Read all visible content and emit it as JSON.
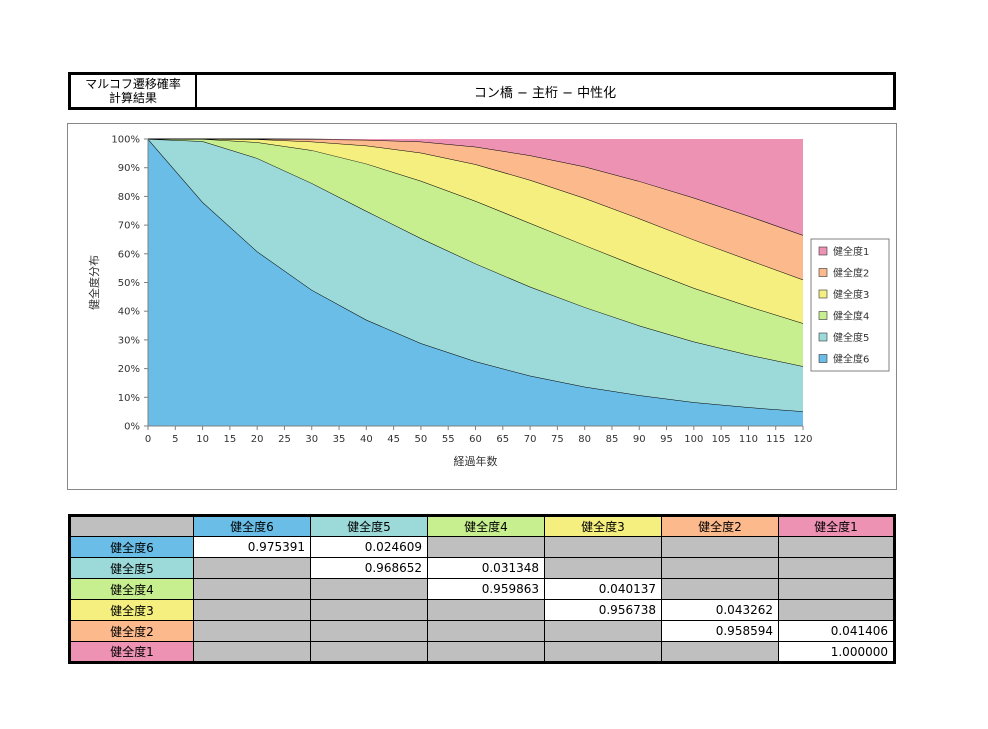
{
  "header": {
    "label_line1": "マルコフ遷移確率",
    "label_line2": "計算結果",
    "title": "コン橋 − 主桁 − 中性化"
  },
  "chart_data": {
    "type": "area",
    "stacked": true,
    "xlabel": "経過年数",
    "ylabel": "健全度分布",
    "xlim": [
      0,
      120
    ],
    "ylim": [
      0,
      100
    ],
    "x_ticks": [
      0,
      5,
      10,
      15,
      20,
      25,
      30,
      35,
      40,
      45,
      50,
      55,
      60,
      65,
      70,
      75,
      80,
      85,
      90,
      95,
      100,
      105,
      110,
      115,
      120
    ],
    "y_ticks": [
      "0%",
      "10%",
      "20%",
      "30%",
      "40%",
      "50%",
      "60%",
      "70%",
      "80%",
      "90%",
      "100%"
    ],
    "grid": false,
    "legend_position": "right",
    "x": [
      0,
      10,
      20,
      30,
      40,
      50,
      60,
      70,
      80,
      90,
      100,
      110,
      120
    ],
    "series": [
      {
        "name": "健全度6",
        "color": "#69bde6",
        "values": [
          100,
          78.0,
          60.8,
          47.4,
          37.0,
          28.8,
          22.5,
          17.5,
          13.7,
          10.7,
          8.3,
          6.5,
          5.1
        ]
      },
      {
        "name": "健全度5",
        "color": "#9cdada",
        "values": [
          0,
          21.2,
          32.5,
          37.2,
          37.9,
          36.6,
          34.1,
          31.0,
          27.7,
          24.3,
          21.1,
          18.3,
          15.7
        ]
      },
      {
        "name": "健全度4",
        "color": "#c7ee8f",
        "values": [
          0,
          0.8,
          5.6,
          11.5,
          16.5,
          20.0,
          21.8,
          22.2,
          21.6,
          20.4,
          18.7,
          16.9,
          15.0
        ]
      },
      {
        "name": "健全度3",
        "color": "#f4ef7f",
        "values": [
          0,
          0,
          1.0,
          3.0,
          6.3,
          9.8,
          12.8,
          15.0,
          16.4,
          16.9,
          16.8,
          16.2,
          15.2
        ]
      },
      {
        "name": "健全度2",
        "color": "#fbb98c",
        "values": [
          0,
          0,
          0.1,
          0.8,
          2.0,
          3.9,
          6.1,
          8.6,
          11.0,
          13.0,
          14.6,
          15.3,
          15.5
        ]
      },
      {
        "name": "健全度1",
        "color": "#ee92b4",
        "values": [
          0,
          0,
          0,
          0.1,
          0.3,
          0.9,
          2.7,
          5.7,
          9.6,
          14.7,
          20.5,
          26.8,
          33.5
        ]
      }
    ]
  },
  "matrix": {
    "columns": [
      {
        "label": "健全度6",
        "color": "#69bde6"
      },
      {
        "label": "健全度5",
        "color": "#9cdada"
      },
      {
        "label": "健全度4",
        "color": "#c7ee8f"
      },
      {
        "label": "健全度3",
        "color": "#f4ef7f"
      },
      {
        "label": "健全度2",
        "color": "#fbb98c"
      },
      {
        "label": "健全度1",
        "color": "#ee92b4"
      }
    ],
    "rows": [
      {
        "label": "健全度6",
        "color": "#69bde6",
        "cells": [
          "0.975391",
          "0.024609",
          null,
          null,
          null,
          null
        ]
      },
      {
        "label": "健全度5",
        "color": "#9cdada",
        "cells": [
          null,
          "0.968652",
          "0.031348",
          null,
          null,
          null
        ]
      },
      {
        "label": "健全度4",
        "color": "#c7ee8f",
        "cells": [
          null,
          null,
          "0.959863",
          "0.040137",
          null,
          null
        ]
      },
      {
        "label": "健全度3",
        "color": "#f4ef7f",
        "cells": [
          null,
          null,
          null,
          "0.956738",
          "0.043262",
          null
        ]
      },
      {
        "label": "健全度2",
        "color": "#fbb98c",
        "cells": [
          null,
          null,
          null,
          null,
          "0.958594",
          "0.041406"
        ]
      },
      {
        "label": "健全度1",
        "color": "#ee92b4",
        "cells": [
          null,
          null,
          null,
          null,
          null,
          "1.000000"
        ]
      }
    ]
  }
}
